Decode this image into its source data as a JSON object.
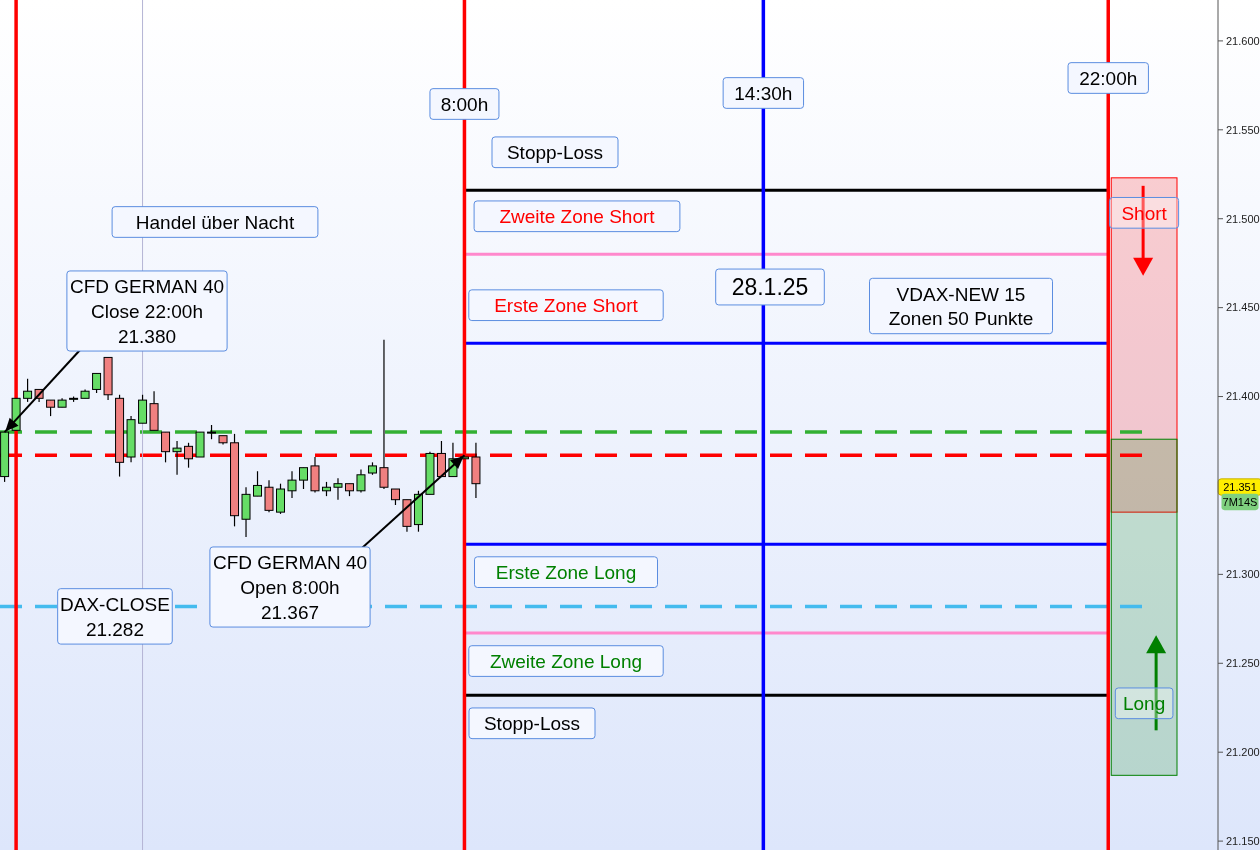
{
  "chart_data": {
    "type": "candlestick",
    "x": [
      -2,
      -1.75,
      -1.5,
      -1.25,
      -1,
      -0.75,
      -0.5,
      -0.25,
      0,
      0.25,
      0.5,
      0.75,
      1,
      1.25,
      1.5,
      1.75,
      2,
      2.25,
      2.5,
      2.75,
      3,
      3.25,
      3.5,
      3.75,
      4,
      4.25,
      4.5,
      4.75,
      5,
      5.25,
      5.5,
      5.75,
      6,
      6.25,
      6.5,
      6.75,
      7,
      7.25,
      7.5,
      7.75,
      8,
      8.25
    ],
    "ohlc": [
      [
        21355,
        21380,
        21352,
        21380
      ],
      [
        21381,
        21399,
        21381,
        21399
      ],
      [
        21399,
        21410,
        21397,
        21403
      ],
      [
        21404,
        21404,
        21397,
        21399
      ],
      [
        21398,
        21398,
        21389,
        21394
      ],
      [
        21394,
        21399,
        21394,
        21398
      ],
      [
        21399,
        21400,
        21397,
        21399
      ],
      [
        21399,
        21404,
        21399,
        21403
      ],
      [
        21404,
        21413,
        21402,
        21413
      ],
      [
        21422,
        21422,
        21398,
        21401
      ],
      [
        21399,
        21401,
        21355,
        21363
      ],
      [
        21366,
        21389,
        21363,
        21387
      ],
      [
        21385,
        21401,
        21385,
        21398
      ],
      [
        21396,
        21403,
        21381,
        21381
      ],
      [
        21380,
        21380,
        21363,
        21369
      ],
      [
        21369,
        21375,
        21356,
        21371
      ],
      [
        21372,
        21374,
        21360,
        21365
      ],
      [
        21366,
        21380,
        21366,
        21380
      ],
      [
        21380,
        21384,
        21376,
        21380
      ],
      [
        21378,
        21378,
        21373,
        21374
      ],
      [
        21374,
        21379,
        21327,
        21333
      ],
      [
        21331,
        21349,
        21321,
        21345
      ],
      [
        21344,
        21358,
        21344,
        21350
      ],
      [
        21349,
        21353,
        21335,
        21336
      ],
      [
        21335,
        21351,
        21334,
        21348
      ],
      [
        21347,
        21358,
        21343,
        21353
      ],
      [
        21353,
        21360,
        21348,
        21360
      ],
      [
        21361,
        21366,
        21346,
        21347
      ],
      [
        21347,
        21352,
        21344,
        21349
      ],
      [
        21349,
        21354,
        21342,
        21351
      ],
      [
        21351,
        21351,
        21344,
        21347
      ],
      [
        21347,
        21359,
        21346,
        21356
      ],
      [
        21357,
        21363,
        21356,
        21361
      ],
      [
        21360,
        21432,
        21348,
        21349
      ],
      [
        21348,
        21348,
        21339,
        21342
      ],
      [
        21342,
        21342,
        21324,
        21327
      ],
      [
        21328,
        21347,
        21324,
        21345
      ],
      [
        21345,
        21369,
        21345,
        21368
      ],
      [
        21368,
        21375,
        21355,
        21355
      ],
      [
        21355,
        21374,
        21355,
        21365
      ],
      [
        21365,
        21366,
        21365,
        21366
      ],
      [
        21366,
        21374,
        21343,
        21351
      ]
    ],
    "colors": [
      "#66dd66",
      "#66dd66",
      "#66dd66",
      "#f08080",
      "#f08080",
      "#66dd66",
      "#66dd66",
      "#66dd66",
      "#66dd66",
      "#f08080",
      "#f08080",
      "#66dd66",
      "#66dd66",
      "#f08080",
      "#f08080",
      "#66dd66",
      "#f08080",
      "#66dd66",
      "#66dd66",
      "#f08080",
      "#f08080",
      "#66dd66",
      "#66dd66",
      "#f08080",
      "#66dd66",
      "#66dd66",
      "#66dd66",
      "#f08080",
      "#66dd66",
      "#66dd66",
      "#f08080",
      "#66dd66",
      "#66dd66",
      "#f08080",
      "#f08080",
      "#f08080",
      "#66dd66",
      "#66dd66",
      "#f08080",
      "#66dd66",
      "#66dd66",
      "#f08080"
    ],
    "xlim": [
      -2.1,
      24.3
    ],
    "ylim": [
      21145,
      21623
    ],
    "yticks": [
      {
        "value": 21150,
        "label": "21.150"
      },
      {
        "value": 21200,
        "label": "21.200"
      },
      {
        "value": 21250,
        "label": "21.250"
      },
      {
        "value": 21300,
        "label": "21.300"
      },
      {
        "value": 21400,
        "label": "21.400"
      },
      {
        "value": 21450,
        "label": "21.450"
      },
      {
        "value": 21500,
        "label": "21.500"
      },
      {
        "value": 21550,
        "label": "21.550"
      },
      {
        "value": 21600,
        "label": "21.600"
      }
    ],
    "tick_labels": "y",
    "grid": false,
    "ref_lines": [
      {
        "axis": "y",
        "value": 21516,
        "label": "Stopp-Loss",
        "color": "#000000"
      },
      {
        "axis": "y",
        "value": 21480,
        "label": "Zweite Zone Short",
        "color": "#ff88cc"
      },
      {
        "axis": "y",
        "value": 21430,
        "label": "Erste Zone Short",
        "color": "#0000ff"
      },
      {
        "axis": "y",
        "value": 21380,
        "color": "#33b033",
        "line_style": "dashed"
      },
      {
        "axis": "y",
        "value": 21367,
        "color": "#ff0000",
        "line_style": "dashed"
      },
      {
        "axis": "y",
        "value": 21317,
        "label": "Erste Zone Long",
        "color": "#0000ff"
      },
      {
        "axis": "y",
        "value": 21282,
        "color": "#44bbee",
        "line_style": "dashed"
      },
      {
        "axis": "y",
        "value": 21267,
        "label": "Zweite Zone Long",
        "color": "#ff88cc"
      },
      {
        "axis": "y",
        "value": 21232,
        "label": "Stopp-Loss",
        "color": "#000000"
      },
      {
        "axis": "x",
        "value": -1.75,
        "color": "#ff0000"
      },
      {
        "axis": "x",
        "value": 1,
        "color": "#b4b4d4"
      },
      {
        "axis": "x",
        "value": 8,
        "label": "8:00h",
        "color": "#ff0000"
      },
      {
        "axis": "x",
        "value": 14.5,
        "label": "14:30h",
        "color": "#0000ff"
      },
      {
        "axis": "x",
        "value": 22,
        "label": "22:00h",
        "color": "#ff0000"
      }
    ],
    "bands": [
      {
        "axis": "y",
        "from": 21335,
        "to": 21523,
        "label": "Short",
        "color": "#ff0000"
      },
      {
        "axis": "y",
        "from": 21187,
        "to": 21376,
        "label": "Long",
        "color": "#008000"
      }
    ],
    "annotations": [
      "Handel über Nacht",
      {
        "text": "CFD GERMAN 40\nClose 22:00h\n21.380",
        "x": -2,
        "y": 21380
      },
      {
        "text": "CFD GERMAN 40\nOpen 8:00h\n21.367",
        "x": 8,
        "y": 21367
      },
      {
        "text": "DAX-CLOSE\n21.282",
        "x": 0.4,
        "y": 21282
      },
      "28.1.25",
      "VDAX-NEW 15\nZonen 50 Punkte",
      "21.351",
      "7M14S"
    ]
  }
}
